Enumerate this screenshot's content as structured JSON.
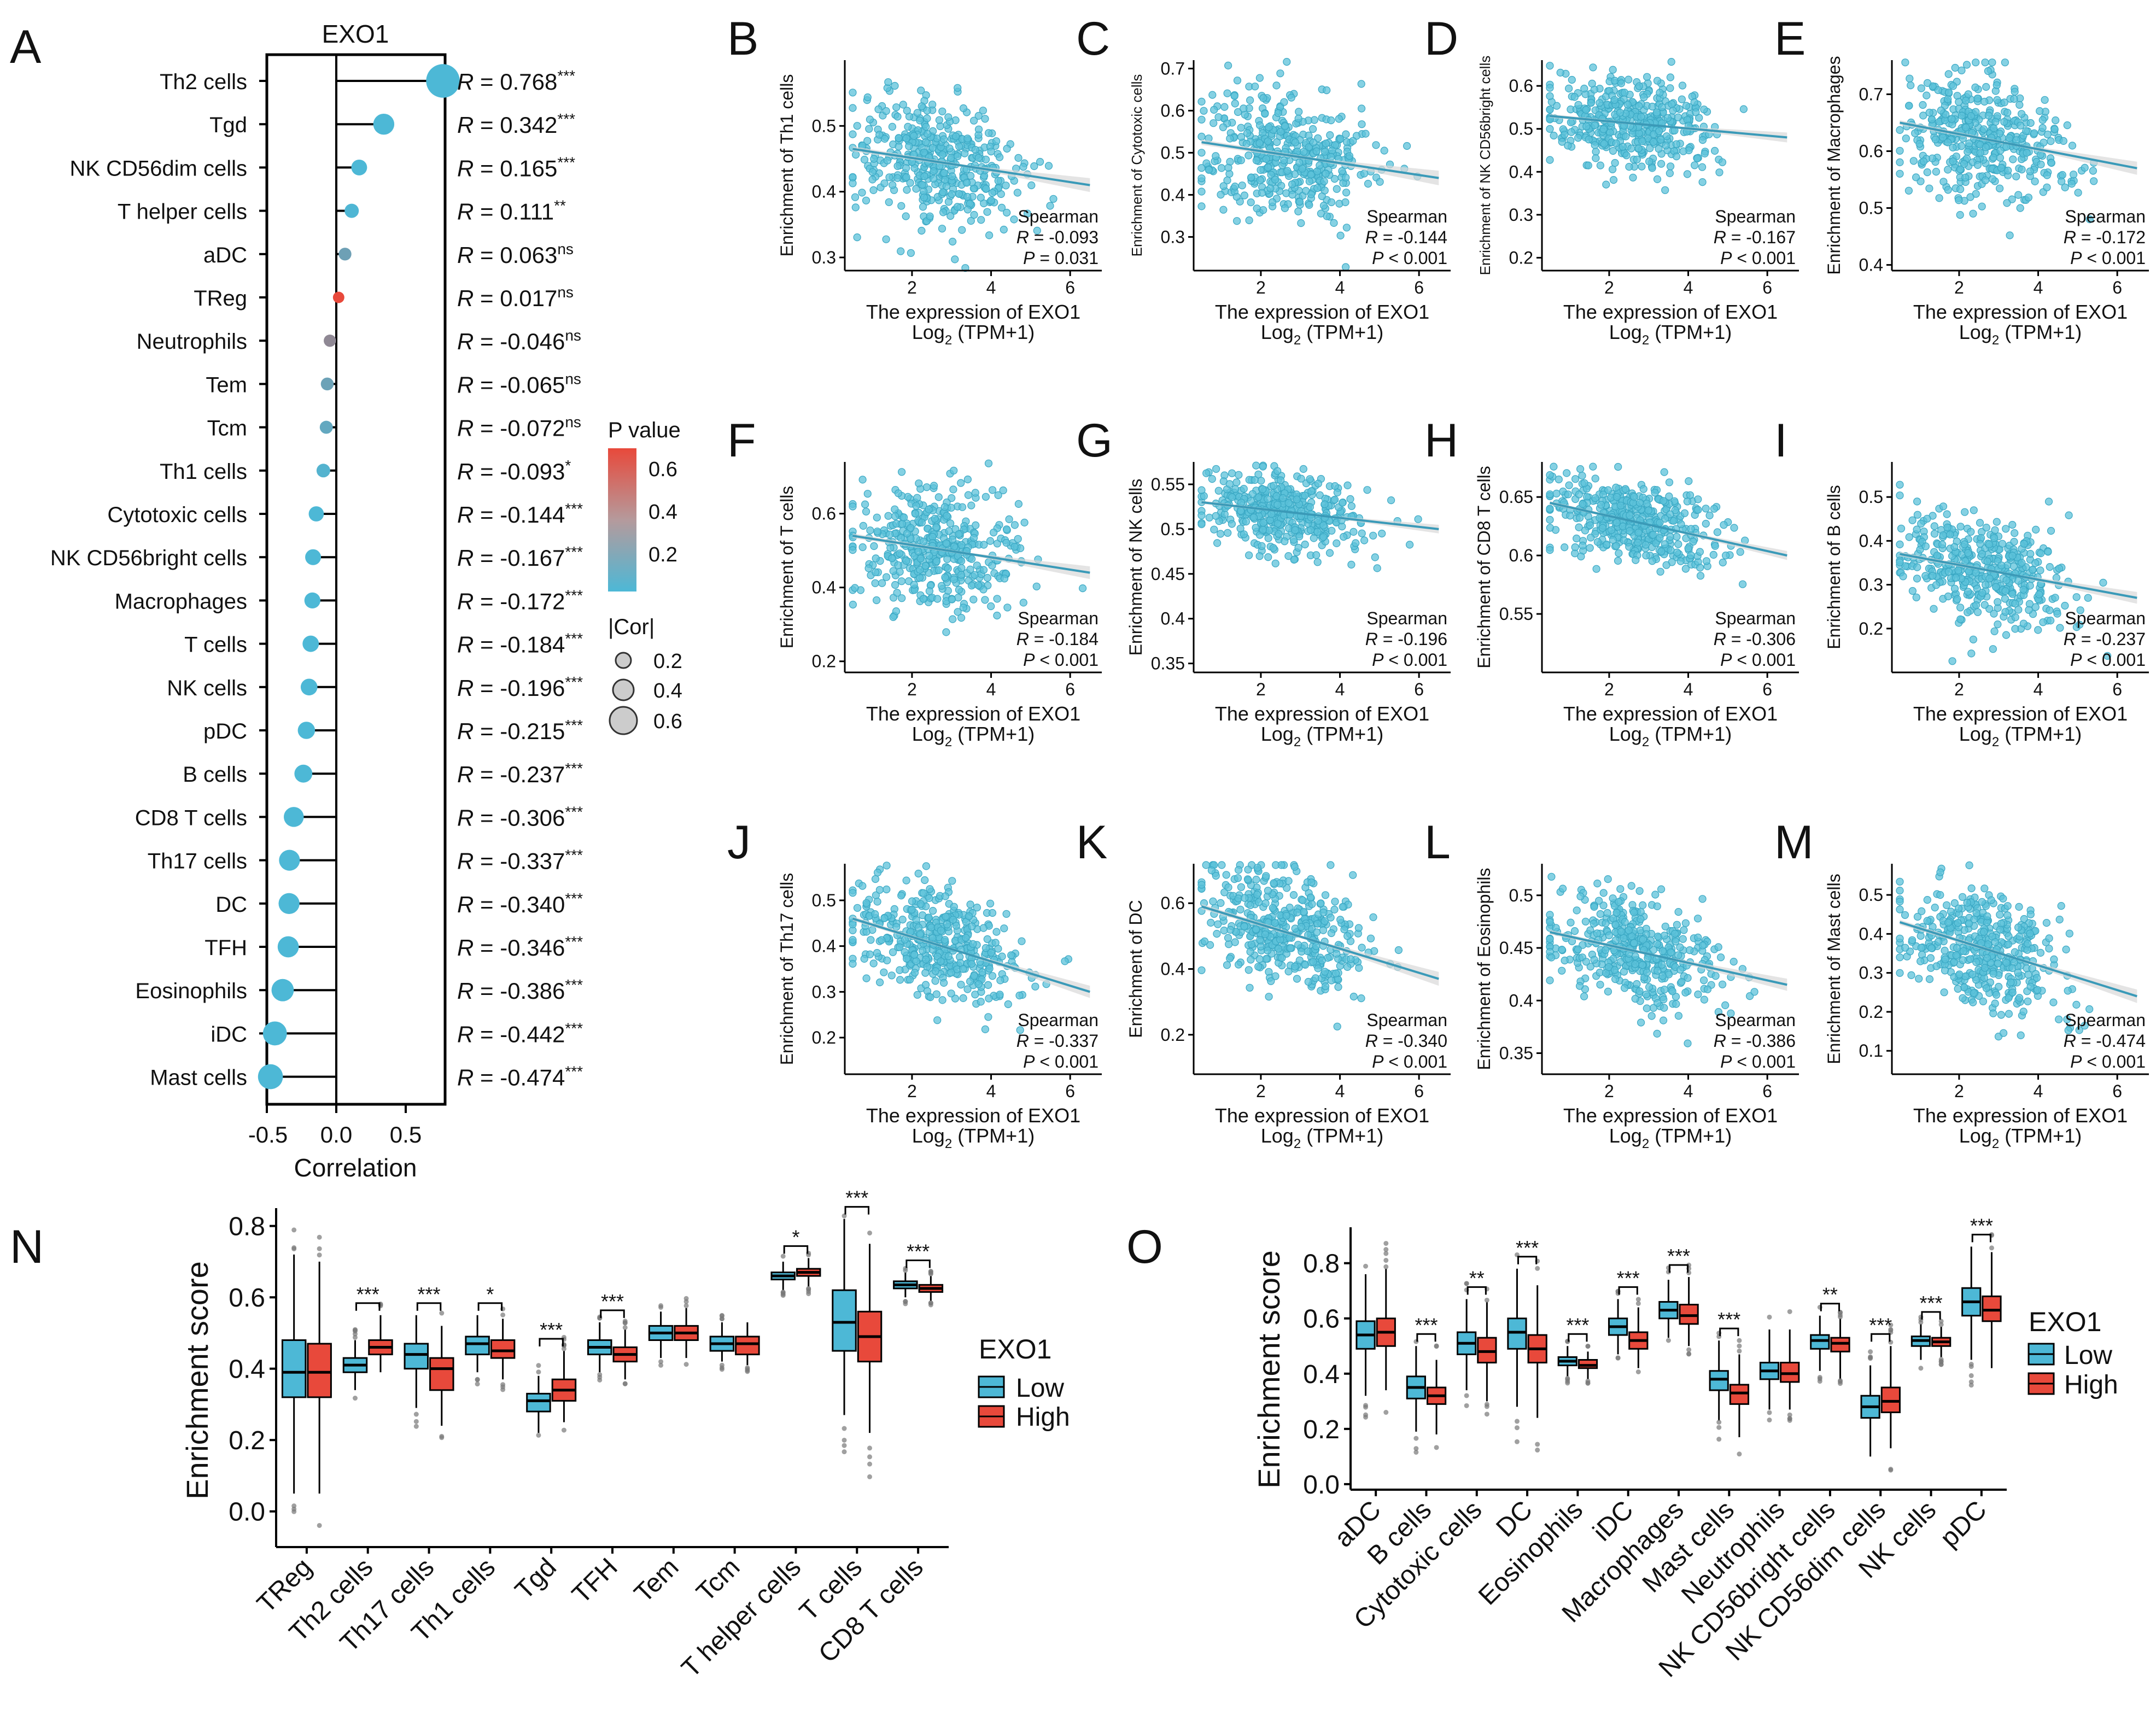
{
  "colors": {
    "low": "#4db8d6",
    "high": "#e8493b",
    "point": "#5cc2d9",
    "line": "#3a9ab8",
    "band": "#d9d9d9",
    "axis": "#000000"
  },
  "panels": {
    "A": {
      "letter": "A",
      "title": "EXO1",
      "xlabel": "Correlation",
      "xticks": [
        "-0.5",
        "0.0",
        "0.5"
      ],
      "legend_p_title": "P value",
      "legend_p_ticks": [
        "0.6",
        "0.4",
        "0.2"
      ],
      "legend_cor_title": "|Cor|",
      "legend_cor_ticks": [
        "0.2",
        "0.4",
        "0.6"
      ]
    },
    "N": {
      "letter": "N",
      "ylabel": "Enrichment score",
      "legend_title": "EXO1",
      "legend_low": "Low",
      "legend_high": "High"
    },
    "O": {
      "letter": "O",
      "ylabel": "Enrichment score",
      "legend_title": "EXO1",
      "legend_low": "Low",
      "legend_high": "High"
    }
  },
  "chart_data": [
    {
      "id": "A",
      "type": "lollipop",
      "title": "EXO1",
      "xlabel": "Correlation",
      "xlim": [
        -0.6,
        0.8
      ],
      "items": [
        {
          "cell": "Th2 cells",
          "r": 0.768,
          "label": "R = 0.768",
          "sig": "***",
          "p": 0.0
        },
        {
          "cell": "Tgd",
          "r": 0.342,
          "label": "R = 0.342",
          "sig": "***",
          "p": 0.0
        },
        {
          "cell": "NK CD56dim cells",
          "r": 0.165,
          "label": "R = 0.165",
          "sig": "***",
          "p": 0.0
        },
        {
          "cell": "T helper cells",
          "r": 0.111,
          "label": "R = 0.111",
          "sig": "**",
          "p": 0.01
        },
        {
          "cell": "aDC",
          "r": 0.063,
          "label": "R = 0.063",
          "sig": "ns",
          "p": 0.15
        },
        {
          "cell": "TReg",
          "r": 0.017,
          "label": "R = 0.017",
          "sig": "ns",
          "p": 0.7
        },
        {
          "cell": "Neutrophils",
          "r": -0.046,
          "label": "R = -0.046",
          "sig": "ns",
          "p": 0.3
        },
        {
          "cell": "Tem",
          "r": -0.065,
          "label": "R = -0.065",
          "sig": "ns",
          "p": 0.14
        },
        {
          "cell": "Tcm",
          "r": -0.072,
          "label": "R = -0.072",
          "sig": "ns",
          "p": 0.1
        },
        {
          "cell": "Th1 cells",
          "r": -0.093,
          "label": "R = -0.093",
          "sig": "*",
          "p": 0.03
        },
        {
          "cell": "Cytotoxic cells",
          "r": -0.144,
          "label": "R = -0.144",
          "sig": "***",
          "p": 0.0
        },
        {
          "cell": "NK CD56bright cells",
          "r": -0.167,
          "label": "R = -0.167",
          "sig": "***",
          "p": 0.0
        },
        {
          "cell": "Macrophages",
          "r": -0.172,
          "label": "R = -0.172",
          "sig": "***",
          "p": 0.0
        },
        {
          "cell": "T cells",
          "r": -0.184,
          "label": "R = -0.184",
          "sig": "***",
          "p": 0.0
        },
        {
          "cell": "NK cells",
          "r": -0.196,
          "label": "R = -0.196",
          "sig": "***",
          "p": 0.0
        },
        {
          "cell": "pDC",
          "r": -0.215,
          "label": "R = -0.215",
          "sig": "***",
          "p": 0.0
        },
        {
          "cell": "B cells",
          "r": -0.237,
          "label": "R = -0.237",
          "sig": "***",
          "p": 0.0
        },
        {
          "cell": "CD8 T cells",
          "r": -0.306,
          "label": "R = -0.306",
          "sig": "***",
          "p": 0.0
        },
        {
          "cell": "Th17 cells",
          "r": -0.337,
          "label": "R = -0.337",
          "sig": "***",
          "p": 0.0
        },
        {
          "cell": "DC",
          "r": -0.34,
          "label": "R = -0.340",
          "sig": "***",
          "p": 0.0
        },
        {
          "cell": "TFH",
          "r": -0.346,
          "label": "R = -0.346",
          "sig": "***",
          "p": 0.0
        },
        {
          "cell": "Eosinophils",
          "r": -0.386,
          "label": "R = -0.386",
          "sig": "***",
          "p": 0.0
        },
        {
          "cell": "iDC",
          "r": -0.442,
          "label": "R = -0.442",
          "sig": "***",
          "p": 0.0
        },
        {
          "cell": "Mast cells",
          "r": -0.474,
          "label": "R = -0.474",
          "sig": "***",
          "p": 0.0
        }
      ]
    },
    {
      "id": "scatter",
      "type": "scatter",
      "xlabel": "The expression of EXO1",
      "xlabel2": "Log",
      "xlabel2_sub": "2",
      "xlabel2_tail": " (TPM+1)",
      "method": "Spearman",
      "xlim": [
        0.3,
        6.8
      ],
      "xticks": [
        2,
        4,
        6
      ],
      "panels": [
        {
          "letter": "B",
          "ylabel": "Enrichment of Th1 cells",
          "r_text": "R = -0.093",
          "p_text": "P = 0.031",
          "yticks": [
            0.3,
            0.4,
            0.5
          ],
          "ylim": [
            0.28,
            0.6
          ],
          "fit": [
            0.465,
            0.41
          ],
          "mean": 0.445,
          "sd": 0.055
        },
        {
          "letter": "C",
          "ylabel": "Enrichment of Cytotoxic cells",
          "r_text": "R = -0.144",
          "p_text": "P < 0.001",
          "yticks": [
            0.3,
            0.4,
            0.5,
            0.6,
            0.7
          ],
          "ylim": [
            0.22,
            0.72
          ],
          "fit": [
            0.525,
            0.44
          ],
          "mean": 0.48,
          "sd": 0.09
        },
        {
          "letter": "D",
          "ylabel": "Enrichment of NK CD56bright cells",
          "r_text": "R = -0.167",
          "p_text": "P < 0.001",
          "yticks": [
            0.2,
            0.3,
            0.4,
            0.5,
            0.6
          ],
          "ylim": [
            0.17,
            0.66
          ],
          "fit": [
            0.53,
            0.48
          ],
          "mean": 0.505,
          "sd": 0.06
        },
        {
          "letter": "E",
          "ylabel": "Enrichment of Macrophages",
          "r_text": "R = -0.172",
          "p_text": "P < 0.001",
          "yticks": [
            0.4,
            0.5,
            0.6,
            0.7
          ],
          "ylim": [
            0.39,
            0.76
          ],
          "fit": [
            0.65,
            0.57
          ],
          "mean": 0.615,
          "sd": 0.06
        },
        {
          "letter": "F",
          "ylabel": "Enrichment of T cells",
          "r_text": "R = -0.184",
          "p_text": "P < 0.001",
          "yticks": [
            0.2,
            0.4,
            0.6
          ],
          "ylim": [
            0.17,
            0.74
          ],
          "fit": [
            0.54,
            0.44
          ],
          "mean": 0.49,
          "sd": 0.09
        },
        {
          "letter": "G",
          "ylabel": "Enrichment of NK cells",
          "r_text": "R = -0.196",
          "p_text": "P < 0.001",
          "yticks": [
            0.35,
            0.4,
            0.45,
            0.5,
            0.55
          ],
          "ylim": [
            0.34,
            0.575
          ],
          "fit": [
            0.53,
            0.5
          ],
          "mean": 0.515,
          "sd": 0.025
        },
        {
          "letter": "H",
          "ylabel": "Enrichment of CD8 T cells",
          "r_text": "R = -0.306",
          "p_text": "P < 0.001",
          "yticks": [
            0.55,
            0.6,
            0.65
          ],
          "ylim": [
            0.5,
            0.68
          ],
          "fit": [
            0.645,
            0.6
          ],
          "mean": 0.625,
          "sd": 0.02
        },
        {
          "letter": "I",
          "ylabel": "Enrichment of B cells",
          "r_text": "R = -0.237",
          "p_text": "P < 0.001",
          "yticks": [
            0.2,
            0.3,
            0.4,
            0.5
          ],
          "ylim": [
            0.1,
            0.58
          ],
          "fit": [
            0.37,
            0.27
          ],
          "mean": 0.33,
          "sd": 0.07
        },
        {
          "letter": "J",
          "ylabel": "Enrichment of Th17 cells",
          "r_text": "R = -0.337",
          "p_text": "P < 0.001",
          "yticks": [
            0.2,
            0.3,
            0.4,
            0.5
          ],
          "ylim": [
            0.12,
            0.58
          ],
          "fit": [
            0.46,
            0.3
          ],
          "mean": 0.4,
          "sd": 0.07
        },
        {
          "letter": "K",
          "ylabel": "Enrichment of DC",
          "r_text": "R = -0.340",
          "p_text": "P < 0.001",
          "yticks": [
            0.2,
            0.4,
            0.6
          ],
          "ylim": [
            0.08,
            0.72
          ],
          "fit": [
            0.59,
            0.37
          ],
          "mean": 0.49,
          "sd": 0.11
        },
        {
          "letter": "L",
          "ylabel": "Enrichment of Eosinophils",
          "r_text": "R = -0.386",
          "p_text": "P < 0.001",
          "yticks": [
            0.35,
            0.4,
            0.45,
            0.5
          ],
          "ylim": [
            0.33,
            0.53
          ],
          "fit": [
            0.465,
            0.415
          ],
          "mean": 0.44,
          "sd": 0.03
        },
        {
          "letter": "M",
          "ylabel": "Enrichment of Mast cells",
          "r_text": "R = -0.474",
          "p_text": "P < 0.001",
          "yticks": [
            0.1,
            0.2,
            0.3,
            0.4,
            0.5
          ],
          "ylim": [
            0.04,
            0.58
          ],
          "fit": [
            0.43,
            0.24
          ],
          "mean": 0.35,
          "sd": 0.09
        }
      ]
    },
    {
      "id": "N",
      "type": "boxplot",
      "ylabel": "Enrichment score",
      "ylim": [
        -0.1,
        0.85
      ],
      "yticks": [
        "0.0",
        "0.2",
        "0.4",
        "0.6",
        "0.8"
      ],
      "categories": [
        "TReg",
        "Th2 cells",
        "Th17 cells",
        "Th1 cells",
        "Tgd",
        "TFH",
        "Tem",
        "Tcm",
        "T helper cells",
        "T cells",
        "CD8 T cells"
      ],
      "significance": [
        "",
        "***",
        "***",
        "*",
        "***",
        "***",
        "",
        "",
        "*",
        "***",
        "***"
      ],
      "series": [
        {
          "name": "Low",
          "boxes": [
            [
              0.05,
              0.32,
              0.39,
              0.48,
              0.72
            ],
            [
              0.34,
              0.39,
              0.41,
              0.43,
              0.48
            ],
            [
              0.29,
              0.4,
              0.44,
              0.47,
              0.55
            ],
            [
              0.39,
              0.44,
              0.47,
              0.49,
              0.55
            ],
            [
              0.22,
              0.28,
              0.31,
              0.33,
              0.38
            ],
            [
              0.39,
              0.44,
              0.46,
              0.48,
              0.53
            ],
            [
              0.43,
              0.48,
              0.5,
              0.52,
              0.56
            ],
            [
              0.42,
              0.45,
              0.47,
              0.49,
              0.53
            ],
            [
              0.62,
              0.65,
              0.66,
              0.67,
              0.7
            ],
            [
              0.27,
              0.45,
              0.53,
              0.62,
              0.82
            ],
            [
              0.6,
              0.625,
              0.635,
              0.645,
              0.67
            ]
          ]
        },
        {
          "name": "High",
          "boxes": [
            [
              0.05,
              0.32,
              0.39,
              0.47,
              0.7
            ],
            [
              0.39,
              0.44,
              0.46,
              0.48,
              0.55
            ],
            [
              0.24,
              0.34,
              0.4,
              0.43,
              0.52
            ],
            [
              0.37,
              0.43,
              0.45,
              0.48,
              0.54
            ],
            [
              0.25,
              0.31,
              0.34,
              0.37,
              0.45
            ],
            [
              0.37,
              0.42,
              0.44,
              0.46,
              0.51
            ],
            [
              0.43,
              0.48,
              0.5,
              0.52,
              0.57
            ],
            [
              0.41,
              0.44,
              0.47,
              0.49,
              0.53
            ],
            [
              0.63,
              0.66,
              0.67,
              0.68,
              0.71
            ],
            [
              0.22,
              0.42,
              0.49,
              0.56,
              0.75
            ],
            [
              0.59,
              0.615,
              0.625,
              0.635,
              0.66
            ]
          ]
        }
      ]
    },
    {
      "id": "O",
      "type": "boxplot",
      "ylabel": "Enrichment score",
      "ylim": [
        -0.02,
        0.93
      ],
      "yticks": [
        "0.0",
        "0.2",
        "0.4",
        "0.6",
        "0.8"
      ],
      "categories": [
        "aDC",
        "B cells",
        "Cytotoxic cells",
        "DC",
        "Eosinophils",
        "iDC",
        "Macrophages",
        "Mast cells",
        "Neutrophils",
        "NK CD56bright cells",
        "NK CD56dim cells",
        "NK cells",
        "pDC"
      ],
      "significance": [
        "",
        "***",
        "**",
        "***",
        "***",
        "***",
        "***",
        "***",
        "",
        "**",
        "***",
        "***",
        "***"
      ],
      "series": [
        {
          "name": "Low",
          "boxes": [
            [
              0.32,
              0.49,
              0.54,
              0.59,
              0.76
            ],
            [
              0.19,
              0.31,
              0.35,
              0.39,
              0.5
            ],
            [
              0.34,
              0.47,
              0.51,
              0.55,
              0.67
            ],
            [
              0.28,
              0.49,
              0.55,
              0.6,
              0.78
            ],
            [
              0.39,
              0.43,
              0.445,
              0.46,
              0.5
            ],
            [
              0.47,
              0.54,
              0.57,
              0.6,
              0.67
            ],
            [
              0.53,
              0.6,
              0.63,
              0.66,
              0.74
            ],
            [
              0.23,
              0.34,
              0.38,
              0.41,
              0.52
            ],
            [
              0.27,
              0.38,
              0.41,
              0.44,
              0.56
            ],
            [
              0.41,
              0.49,
              0.52,
              0.54,
              0.61
            ],
            [
              0.1,
              0.24,
              0.28,
              0.32,
              0.43
            ],
            [
              0.45,
              0.5,
              0.52,
              0.535,
              0.58
            ],
            [
              0.45,
              0.61,
              0.66,
              0.71,
              0.86
            ]
          ]
        },
        {
          "name": "High",
          "boxes": [
            [
              0.34,
              0.5,
              0.55,
              0.6,
              0.78
            ],
            [
              0.18,
              0.29,
              0.32,
              0.35,
              0.45
            ],
            [
              0.3,
              0.44,
              0.48,
              0.53,
              0.66
            ],
            [
              0.24,
              0.44,
              0.49,
              0.54,
              0.72
            ],
            [
              0.38,
              0.42,
              0.43,
              0.45,
              0.48
            ],
            [
              0.42,
              0.49,
              0.52,
              0.55,
              0.64
            ],
            [
              0.5,
              0.58,
              0.61,
              0.65,
              0.75
            ],
            [
              0.17,
              0.29,
              0.33,
              0.36,
              0.47
            ],
            [
              0.27,
              0.37,
              0.4,
              0.44,
              0.56
            ],
            [
              0.38,
              0.48,
              0.51,
              0.53,
              0.6
            ],
            [
              0.13,
              0.26,
              0.3,
              0.35,
              0.5
            ],
            [
              0.46,
              0.5,
              0.515,
              0.53,
              0.57
            ],
            [
              0.42,
              0.59,
              0.63,
              0.68,
              0.84
            ]
          ]
        }
      ]
    }
  ]
}
